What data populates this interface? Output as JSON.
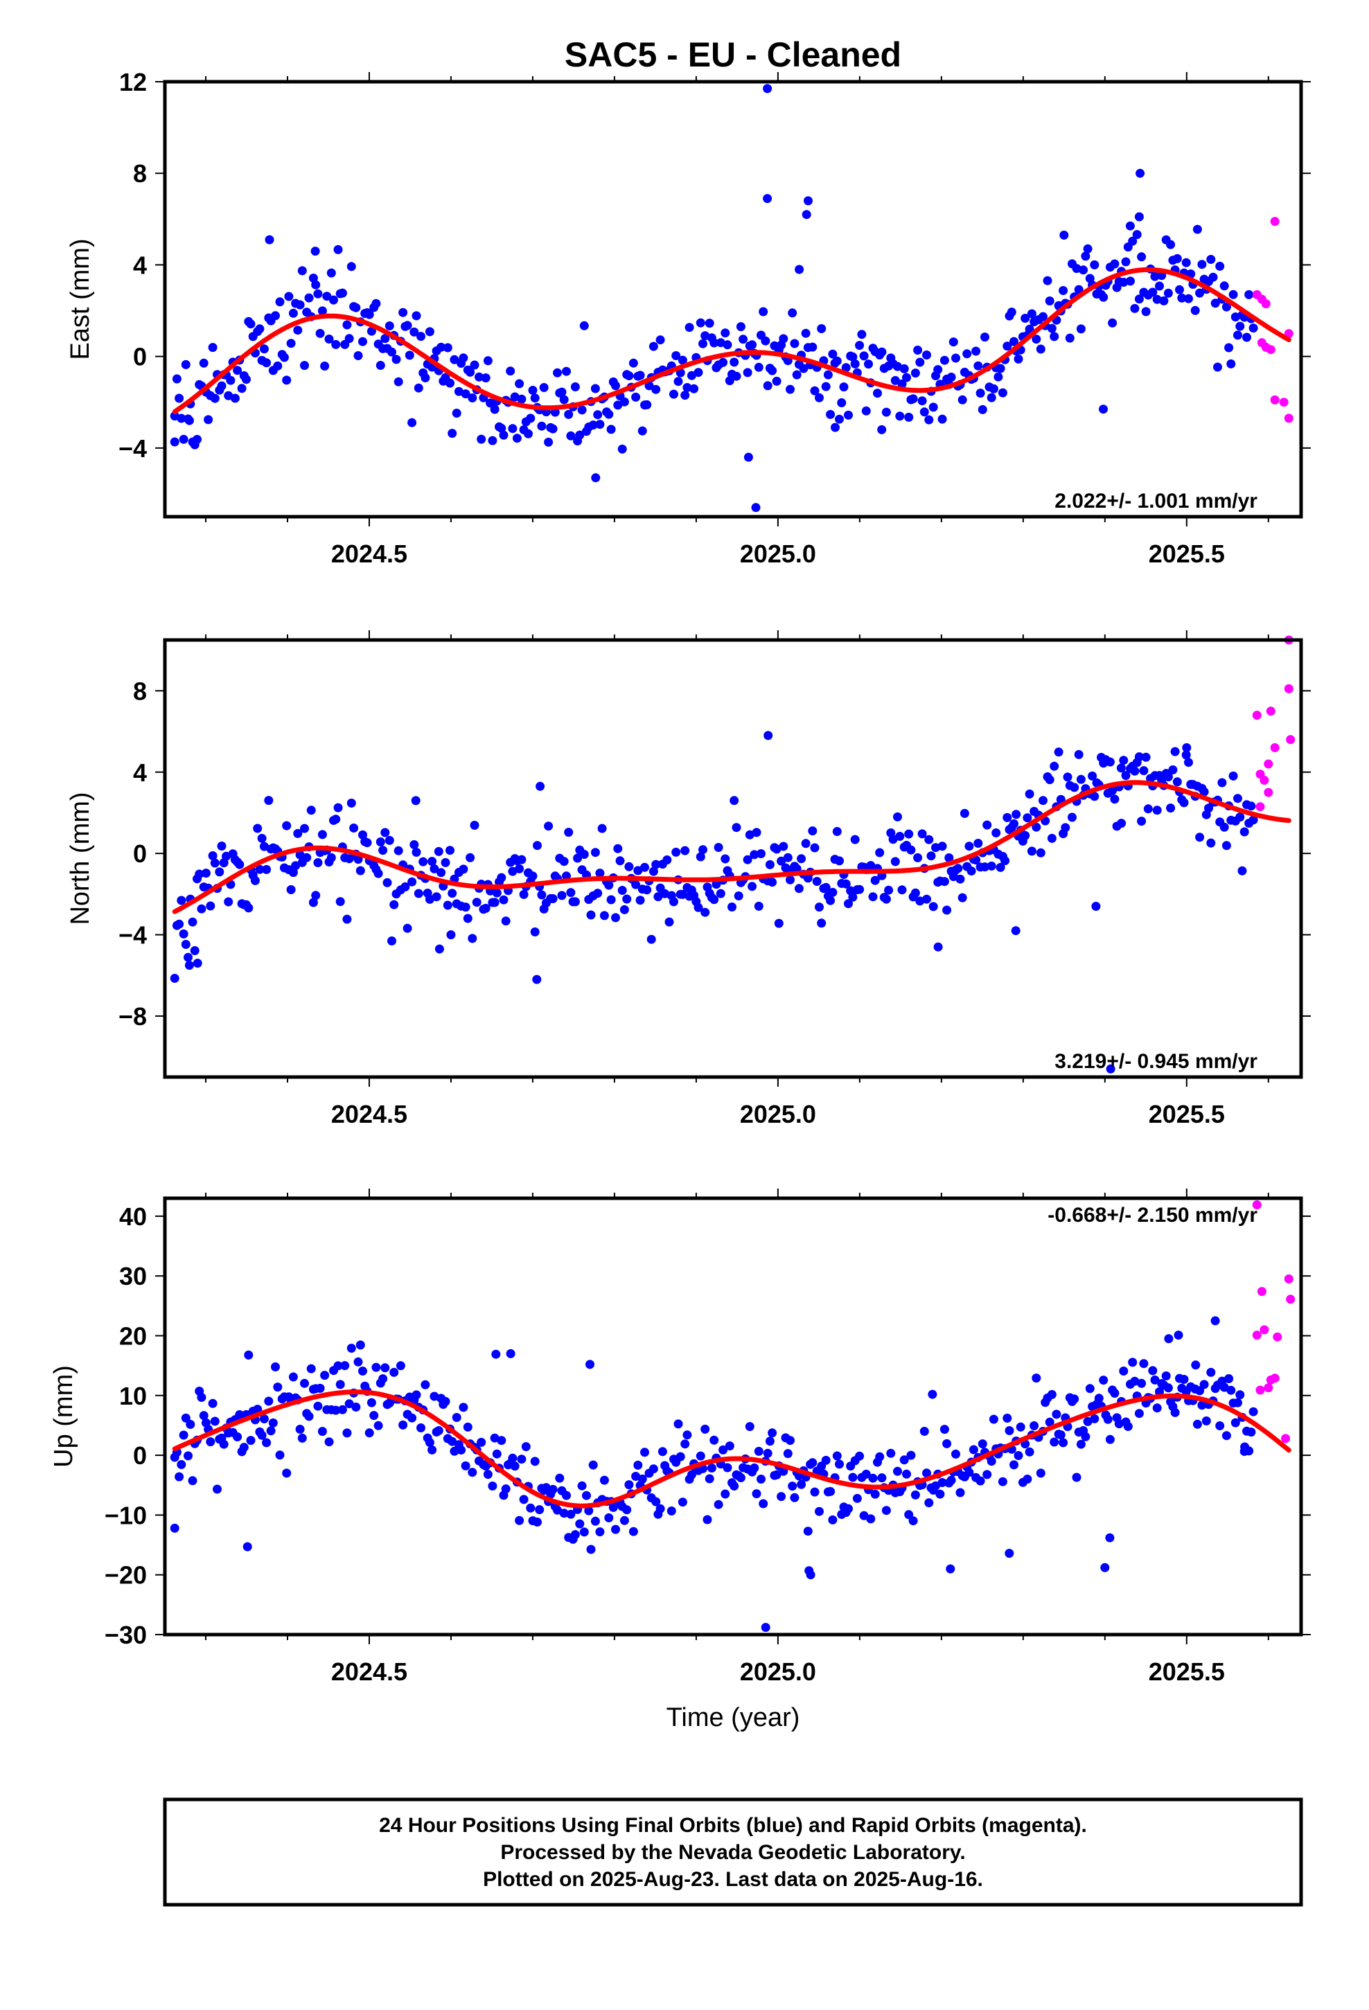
{
  "title": "SAC5  - EU - Cleaned",
  "colors": {
    "final_orbits": "#0000ff",
    "rapid_orbits": "#ff00ff",
    "fit_curve": "#ff0000",
    "frame": "#000000"
  },
  "xlabel": "Time (year)",
  "footer": {
    "line1": "24 Hour Positions Using Final Orbits (blue) and Rapid Orbits (magenta).",
    "line2": "Processed by the Nevada Geodetic Laboratory.",
    "line3": "Plotted on 2025-Aug-23. Last data on 2025-Aug-16."
  },
  "chart_data": [
    {
      "type": "scatter",
      "component": "east",
      "ylabel": "East (mm)",
      "rate_text": "2.022+/- 1.001 mm/yr",
      "xlim": [
        2024.25,
        2025.64
      ],
      "ylim": [
        -7,
        12
      ],
      "yticks": [
        -4,
        0,
        4,
        8,
        12
      ],
      "xticks": [
        2024.5,
        2025.0,
        2025.5
      ],
      "fit": {
        "trend_mm_per_yr": 2.022,
        "a": 0.36,
        "b": -1.16,
        "c": -0.94,
        "d": 1.33,
        "e": 0.13,
        "t0": 2024.95,
        "k": -0.17
      },
      "outliers": [
        {
          "x": 2024.378,
          "y": 5.1
        },
        {
          "x": 2024.434,
          "y": 4.6
        },
        {
          "x": 2024.987,
          "y": 11.7
        },
        {
          "x": 2024.987,
          "y": 6.9
        },
        {
          "x": 2025.037,
          "y": 6.8
        },
        {
          "x": 2025.035,
          "y": 6.2
        },
        {
          "x": 2025.026,
          "y": 3.8
        },
        {
          "x": 2025.443,
          "y": 8.0
        },
        {
          "x": 2025.442,
          "y": 6.1
        },
        {
          "x": 2025.431,
          "y": 5.7
        },
        {
          "x": 2025.35,
          "y": 5.3
        },
        {
          "x": 2024.973,
          "y": -6.6
        },
        {
          "x": 2024.964,
          "y": -4.4
        },
        {
          "x": 2024.777,
          "y": -5.3
        },
        {
          "x": 2025.398,
          "y": -2.3
        },
        {
          "x": 2024.262,
          "y": -2.6
        },
        {
          "x": 2024.28,
          "y": -2.8
        },
        {
          "x": 2025.07,
          "y": -3.1
        },
        {
          "x": 2025.127,
          "y": -3.2
        }
      ],
      "rapid_points": [
        {
          "x": 2025.586,
          "y": 2.7
        },
        {
          "x": 2025.592,
          "y": 2.5
        },
        {
          "x": 2025.597,
          "y": 2.3
        },
        {
          "x": 2025.592,
          "y": 0.6
        },
        {
          "x": 2025.597,
          "y": 0.4
        },
        {
          "x": 2025.603,
          "y": 0.3
        },
        {
          "x": 2025.608,
          "y": 5.9
        },
        {
          "x": 2025.608,
          "y": -1.9
        },
        {
          "x": 2025.619,
          "y": -2.0
        },
        {
          "x": 2025.625,
          "y": -2.7
        },
        {
          "x": 2025.625,
          "y": 1.0
        }
      ]
    },
    {
      "type": "scatter",
      "component": "north",
      "ylabel": "North (mm)",
      "rate_text": "3.219+/- 0.945 mm/yr",
      "xlim": [
        2024.25,
        2025.64
      ],
      "ylim": [
        -11,
        10.5
      ],
      "yticks": [
        -8,
        -4,
        0,
        4,
        8
      ],
      "xticks": [
        2024.5,
        2025.0,
        2025.5
      ],
      "fit": {
        "trend_mm_per_yr": 3.219,
        "a": 0.26,
        "b": -1.24,
        "c": -0.63,
        "d": 0.39,
        "e": 0.35,
        "t0": 2024.95,
        "k": -0.37
      },
      "outliers": [
        {
          "x": 2024.988,
          "y": 5.8
        },
        {
          "x": 2024.709,
          "y": 3.3
        },
        {
          "x": 2024.557,
          "y": 2.6
        },
        {
          "x": 2024.705,
          "y": -6.2
        },
        {
          "x": 2025.407,
          "y": -10.6
        },
        {
          "x": 2024.28,
          "y": -5.5
        },
        {
          "x": 2024.29,
          "y": -5.4
        },
        {
          "x": 2025.291,
          "y": -3.8
        },
        {
          "x": 2025.196,
          "y": -4.6
        },
        {
          "x": 2024.586,
          "y": -4.7
        },
        {
          "x": 2024.6,
          "y": -4.0
        },
        {
          "x": 2025.389,
          "y": -2.6
        },
        {
          "x": 2025.5,
          "y": 5.2
        },
        {
          "x": 2025.42,
          "y": 4.2
        }
      ],
      "rapid_points": [
        {
          "x": 2025.586,
          "y": 6.8
        },
        {
          "x": 2025.59,
          "y": 3.9
        },
        {
          "x": 2025.595,
          "y": 3.6
        },
        {
          "x": 2025.6,
          "y": 4.4
        },
        {
          "x": 2025.603,
          "y": 7.0
        },
        {
          "x": 2025.608,
          "y": 5.2
        },
        {
          "x": 2025.625,
          "y": 10.5
        },
        {
          "x": 2025.625,
          "y": 8.1
        },
        {
          "x": 2025.627,
          "y": 5.6
        },
        {
          "x": 2025.59,
          "y": 2.3
        },
        {
          "x": 2025.6,
          "y": 3.0
        }
      ]
    },
    {
      "type": "scatter",
      "component": "up",
      "ylabel": "Up (mm)",
      "rate_text": "-0.668+/- 2.150 mm/yr",
      "xlim": [
        2024.25,
        2025.64
      ],
      "ylim": [
        -30,
        43
      ],
      "yticks": [
        -30,
        -20,
        -10,
        0,
        10,
        20,
        30,
        40
      ],
      "xticks": [
        2024.5,
        2025.0,
        2025.5
      ],
      "fit": {
        "trend_mm_per_yr": -0.668,
        "a": 2.73,
        "b": -5.85,
        "c": -1.95,
        "d": 4.33,
        "e": -1.48,
        "t0": 2024.95,
        "k": 0
      },
      "outliers": [
        {
          "x": 2024.262,
          "y": -12.2
        },
        {
          "x": 2024.351,
          "y": -15.3
        },
        {
          "x": 2024.985,
          "y": -28.8
        },
        {
          "x": 2025.04,
          "y": -20.0
        },
        {
          "x": 2025.038,
          "y": -19.3
        },
        {
          "x": 2025.211,
          "y": -19.0
        },
        {
          "x": 2025.4,
          "y": -18.8
        },
        {
          "x": 2025.406,
          "y": -13.8
        },
        {
          "x": 2025.283,
          "y": -16.4
        },
        {
          "x": 2024.673,
          "y": 17.0
        },
        {
          "x": 2024.655,
          "y": 16.9
        },
        {
          "x": 2024.77,
          "y": 15.2
        },
        {
          "x": 2025.478,
          "y": 19.5
        },
        {
          "x": 2025.49,
          "y": 20.1
        },
        {
          "x": 2025.535,
          "y": 22.5
        },
        {
          "x": 2025.511,
          "y": 15.1
        },
        {
          "x": 2025.189,
          "y": 10.2
        },
        {
          "x": 2025.571,
          "y": 1.4
        }
      ],
      "rapid_points": [
        {
          "x": 2025.586,
          "y": 41.9
        },
        {
          "x": 2025.586,
          "y": 20.1
        },
        {
          "x": 2025.592,
          "y": 27.4
        },
        {
          "x": 2025.595,
          "y": 21.0
        },
        {
          "x": 2025.603,
          "y": 12.6
        },
        {
          "x": 2025.608,
          "y": 12.9
        },
        {
          "x": 2025.611,
          "y": 19.8
        },
        {
          "x": 2025.625,
          "y": 29.5
        },
        {
          "x": 2025.627,
          "y": 26.1
        },
        {
          "x": 2025.621,
          "y": 2.8
        },
        {
          "x": 2025.59,
          "y": 10.9
        },
        {
          "x": 2025.6,
          "y": 11.3
        }
      ]
    }
  ]
}
